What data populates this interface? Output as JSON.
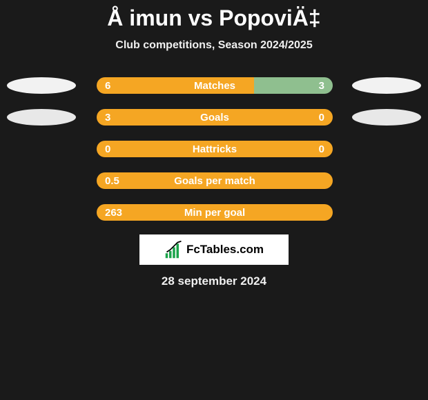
{
  "title": "Å imun vs PopoviÄ‡",
  "subtitle": "Club competitions, Season 2024/2025",
  "date": "28 september 2024",
  "colors": {
    "bg": "#1a1a1a",
    "bar_left": "#f5a623",
    "text": "#ffffff"
  },
  "logo": {
    "text": "FcTables.com"
  },
  "ellipses": {
    "row0": {
      "left": "#f2f2f2",
      "right": "#f2f2f2"
    },
    "row1": {
      "left": "#e8e8e8",
      "right": "#e8e8e8"
    }
  },
  "rows": [
    {
      "label": "Matches",
      "left_value": "6",
      "right_value": "3",
      "left_width_pct": 66.7,
      "right_color": "#8fbf8f",
      "show_ellipses": true
    },
    {
      "label": "Goals",
      "left_value": "3",
      "right_value": "0",
      "left_width_pct": 77,
      "right_color": "#f5a623",
      "show_ellipses": true
    },
    {
      "label": "Hattricks",
      "left_value": "0",
      "right_value": "0",
      "left_width_pct": 100,
      "right_color": "#f5a623",
      "show_ellipses": false
    },
    {
      "label": "Goals per match",
      "left_value": "0.5",
      "right_value": "",
      "left_width_pct": 100,
      "right_color": "#f5a623",
      "show_ellipses": false
    },
    {
      "label": "Min per goal",
      "left_value": "263",
      "right_value": "",
      "left_width_pct": 100,
      "right_color": "#f5a623",
      "show_ellipses": false
    }
  ]
}
